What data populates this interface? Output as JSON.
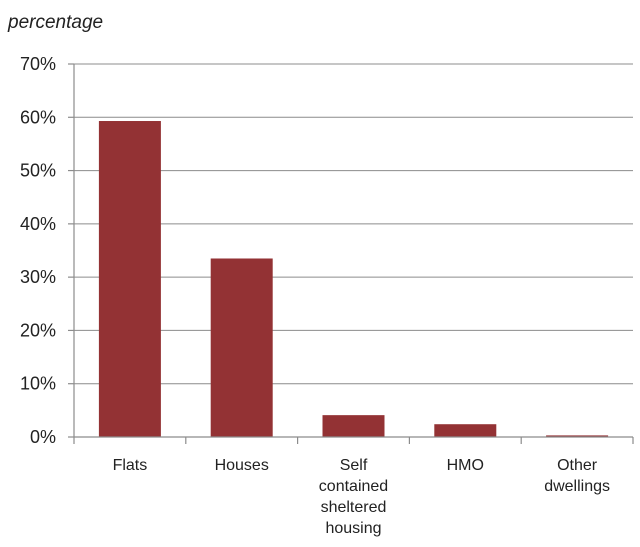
{
  "chart_data": {
    "type": "bar",
    "ylabel": "percentage",
    "xlabel": "",
    "title": "",
    "categories": [
      [
        "Flats"
      ],
      [
        "Houses"
      ],
      [
        "Self",
        "contained",
        "sheltered",
        "housing"
      ],
      [
        "HMO"
      ],
      [
        "Other",
        "dwellings"
      ]
    ],
    "values": [
      59.3,
      33.5,
      4.1,
      2.4,
      0.3
    ],
    "ylim": [
      0,
      70
    ],
    "yticks": [
      "0%",
      "10%",
      "20%",
      "30%",
      "40%",
      "50%",
      "60%",
      "70%"
    ],
    "grid": true,
    "legend": "none",
    "colors": {
      "bar": "#933234",
      "grid": "#8c8c8c",
      "axis": "#8c8c8c",
      "text": "#222222"
    }
  }
}
